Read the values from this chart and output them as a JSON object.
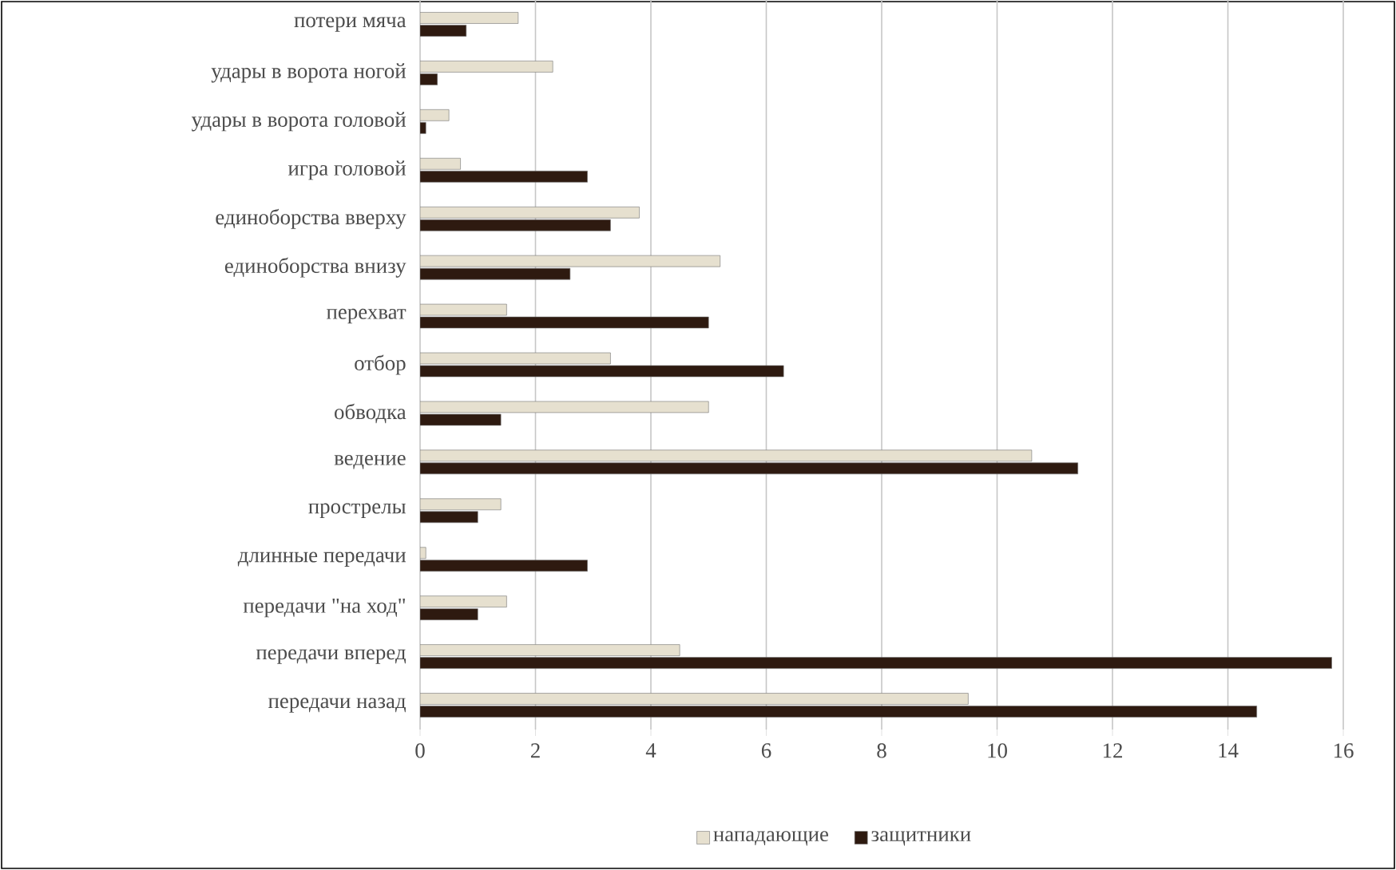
{
  "chart_data": {
    "type": "bar",
    "orientation": "horizontal",
    "categories": [
      "потери мяча",
      "удары в ворота ногой",
      "удары в ворота головой",
      "игра головой",
      "единоборства вверху",
      "единоборства внизу",
      "перехват",
      "отбор",
      "обводка",
      "ведение",
      "прострелы",
      "длинные передачи",
      "передачи \"на ход\"",
      "передачи вперед",
      "передачи назад"
    ],
    "series": [
      {
        "name": "нападающие",
        "color": "#e6e0cf",
        "values": [
          1.7,
          2.3,
          0.5,
          0.7,
          3.8,
          5.2,
          1.5,
          3.3,
          5.0,
          10.6,
          1.4,
          0.1,
          1.5,
          4.5,
          9.5
        ]
      },
      {
        "name": "защитники",
        "color": "#2e1a10",
        "values": [
          0.8,
          0.3,
          0.1,
          2.9,
          3.3,
          2.6,
          5.0,
          6.3,
          1.4,
          11.4,
          1.0,
          2.9,
          1.0,
          15.8,
          14.5
        ]
      }
    ],
    "xlim": [
      0,
      16
    ],
    "xticks": [
      0,
      2,
      4,
      6,
      8,
      10,
      12,
      14,
      16
    ],
    "grid": "x",
    "legend": "bottom"
  }
}
